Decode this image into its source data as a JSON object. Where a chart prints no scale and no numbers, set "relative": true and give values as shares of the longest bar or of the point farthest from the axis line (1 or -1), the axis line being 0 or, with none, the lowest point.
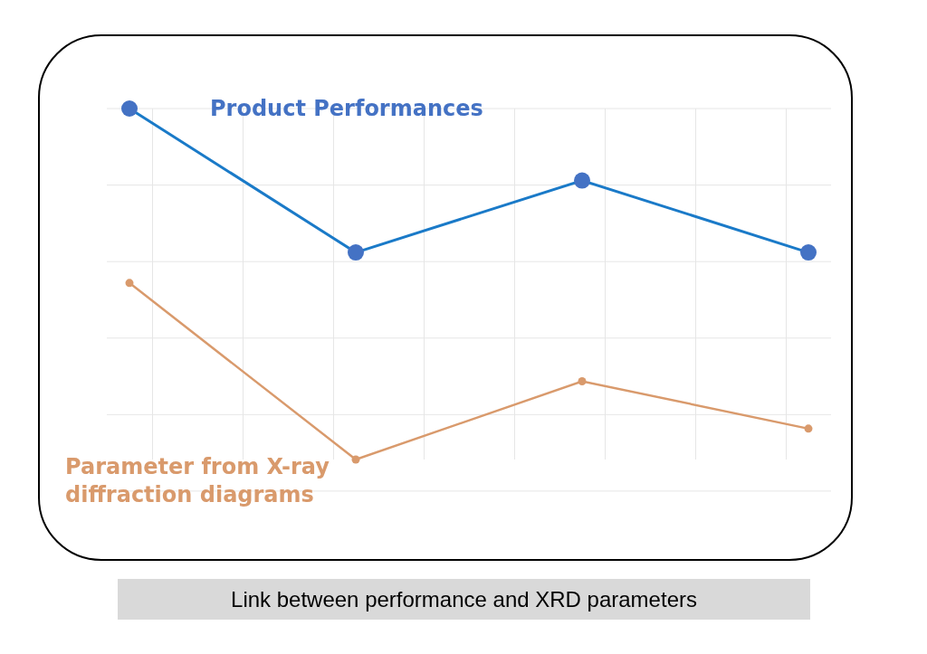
{
  "chart_data": {
    "type": "line",
    "relative": true,
    "categories": [
      null,
      null,
      null,
      null
    ],
    "series": [
      {
        "name": "Product Performances",
        "color": "#4472c4",
        "values": [
          1,
          0.59,
          0.795,
          0.59
        ]
      },
      {
        "name": "Parameter from X-ray diffraction diagrams",
        "color": "#d99a6c",
        "values": [
          0.503,
          0,
          0.223,
          0.088
        ]
      }
    ],
    "marker": "circle",
    "line_style": "solid",
    "grid": true,
    "legend": false,
    "annotations": [
      "Link between performance and XRD parameters"
    ]
  }
}
